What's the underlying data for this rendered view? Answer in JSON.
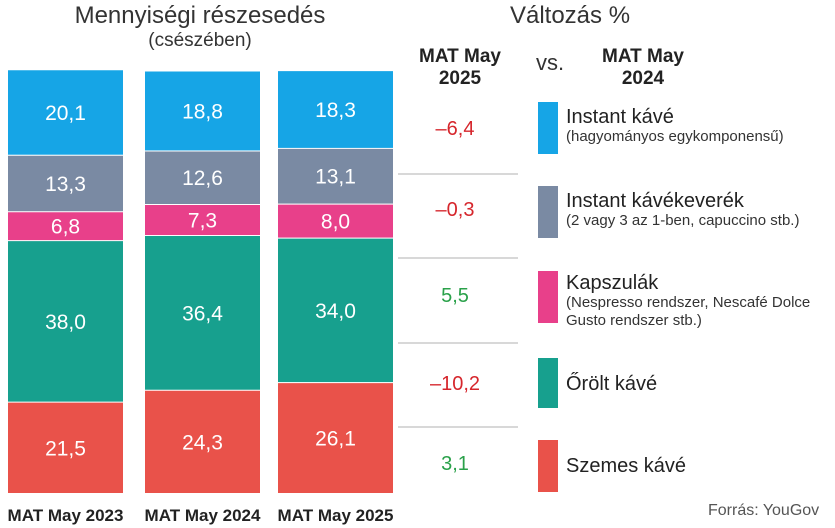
{
  "title_left": "Mennyiségi részesedés",
  "subtitle_left": "(csészében)",
  "title_right": "Változás %",
  "change_header": {
    "current_line1": "MAT May",
    "current_line2": "2025",
    "vs": "vs.",
    "previous_line1": "MAT May",
    "previous_line2": "2024"
  },
  "source": "Forrás: YouGov",
  "chart_data": {
    "type": "bar",
    "stacked": true,
    "categories": [
      "MAT May 2023",
      "MAT May 2024",
      "MAT May 2025"
    ],
    "ylim": [
      0,
      100
    ],
    "grid": false,
    "legend_position": "right",
    "series": [
      {
        "name": "Szemes kávé",
        "note": "",
        "color": "#e9524a",
        "values": [
          21.5,
          24.3,
          26.1
        ],
        "labels": [
          "21,5",
          "24,3",
          "26,1"
        ],
        "change": "3,1",
        "change_color": "#2aa14a"
      },
      {
        "name": "Őrölt kávé",
        "note": "",
        "color": "#17a08e",
        "values": [
          38.0,
          36.4,
          34.0
        ],
        "labels": [
          "38,0",
          "36,4",
          "34,0"
        ],
        "change": "–10,2",
        "change_color": "#d6262c"
      },
      {
        "name": "Kapszulák",
        "note": "(Nespresso rendszer, Nescafé Dolce Gusto rendszer stb.)",
        "color": "#e8408a",
        "values": [
          6.8,
          7.3,
          8.0
        ],
        "labels": [
          "6,8",
          "7,3",
          "8,0"
        ],
        "change": "5,5",
        "change_color": "#2aa14a"
      },
      {
        "name": "Instant kávékeverék",
        "note": "(2 vagy 3 az 1-ben, capuccino stb.)",
        "color": "#7a8aa3",
        "values": [
          13.3,
          12.6,
          13.1
        ],
        "labels": [
          "13,3",
          "12,6",
          "13,1"
        ],
        "change": "–0,3",
        "change_color": "#d6262c"
      },
      {
        "name": "Instant kávé",
        "note": "(hagyományos egykomponensű)",
        "color": "#16a5e6",
        "values": [
          20.1,
          18.8,
          18.3
        ],
        "labels": [
          "20,1",
          "18,8",
          "18,3"
        ],
        "change": "–6,4",
        "change_color": "#d6262c"
      }
    ]
  }
}
